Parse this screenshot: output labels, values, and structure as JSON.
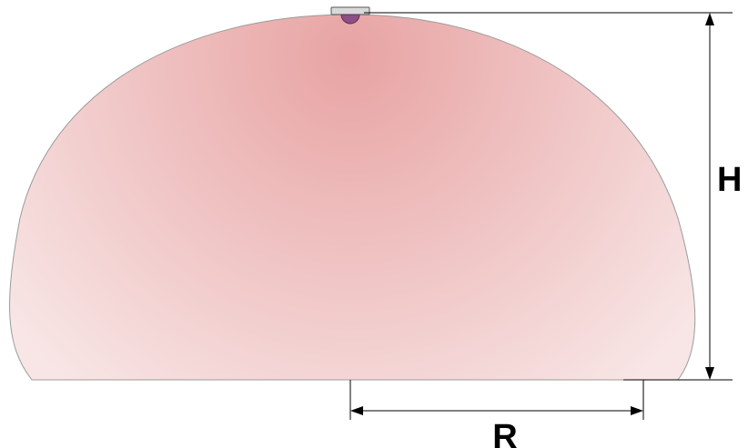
{
  "diagram": {
    "height_label": "H",
    "radius_label": "R",
    "colors": {
      "zone_center": "#e8a3a3",
      "zone_edge": "#f8e6e6",
      "zone_outline": "#9b9b9b",
      "sensor_body": "#8e4e86",
      "sensor_mount": "#d9d9d9",
      "dimension_line": "#000000"
    },
    "icons": {
      "sensor": "ceiling-sensor-icon"
    }
  }
}
